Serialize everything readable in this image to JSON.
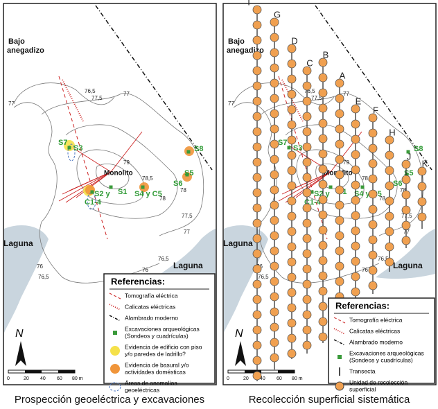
{
  "left": {
    "place_names": [
      "Bajo",
      "anegadizo",
      "Monolito",
      "Laguna",
      "Laguna"
    ],
    "contours": [
      "77",
      "76,5",
      "77,5",
      "77",
      "78",
      "79",
      "78,5",
      "78",
      "77,5",
      "77",
      "76",
      "76,5",
      "76",
      "76,5"
    ],
    "sites": [
      "S1",
      "S2 y",
      "C1-4",
      "S3",
      "S4 y C5",
      "S5",
      "S6",
      "S7",
      "S8"
    ],
    "legend_title": "Referencias:",
    "legend": [
      [
        "Tomografía eléctrica"
      ],
      [
        "Calicatas eléctricas"
      ],
      [
        "Alambrado moderno"
      ],
      [
        "Excavaciones arqueológicas",
        "(Sondeos y cuadrículas)"
      ],
      [
        "Evidencia de edificio con piso",
        "y/o paredes de ladrillo?"
      ],
      [
        "Evidencia de basural y/o",
        "actividades domésticas"
      ],
      [
        "Áreas de anomalías",
        "geoeléctricas"
      ]
    ],
    "north": "N",
    "scale": [
      "0",
      "20",
      "40",
      "60",
      "80 m"
    ],
    "caption": "Prospección geoeléctrica y excavaciones"
  },
  "right": {
    "place_names": [
      "Bajo",
      "anegadizo",
      "Monolito",
      "Laguna",
      "Laguna"
    ],
    "contours": [
      "77",
      "76,5",
      "77,5",
      "77",
      "78",
      "79",
      "78,5",
      "78",
      "77,5",
      "77",
      "76",
      "76,5",
      "76",
      "76,5"
    ],
    "sites": [
      "S1",
      "S2 y",
      "C1-4",
      "S3",
      "S4 y C5",
      "S5",
      "S6",
      "S7",
      "S8"
    ],
    "transects": [
      "I",
      "G",
      "D",
      "C",
      "B",
      "A",
      "E",
      "F",
      "H",
      "J",
      "K"
    ],
    "legend_title": "Referencias:",
    "legend": [
      [
        "Tomografía eléctrica"
      ],
      [
        "Calicatas eléctricas"
      ],
      [
        "Alambrado moderno"
      ],
      [
        "Excavaciones arqueológicas",
        "(Sondeos y cuadrículas)"
      ],
      [
        "Transecta"
      ],
      [
        "Unidad de recolección",
        "superficial"
      ]
    ],
    "north": "N",
    "scale": [
      "0",
      "20",
      "40",
      "60",
      "80 m"
    ],
    "caption": "Recolección superficial sistemática"
  }
}
